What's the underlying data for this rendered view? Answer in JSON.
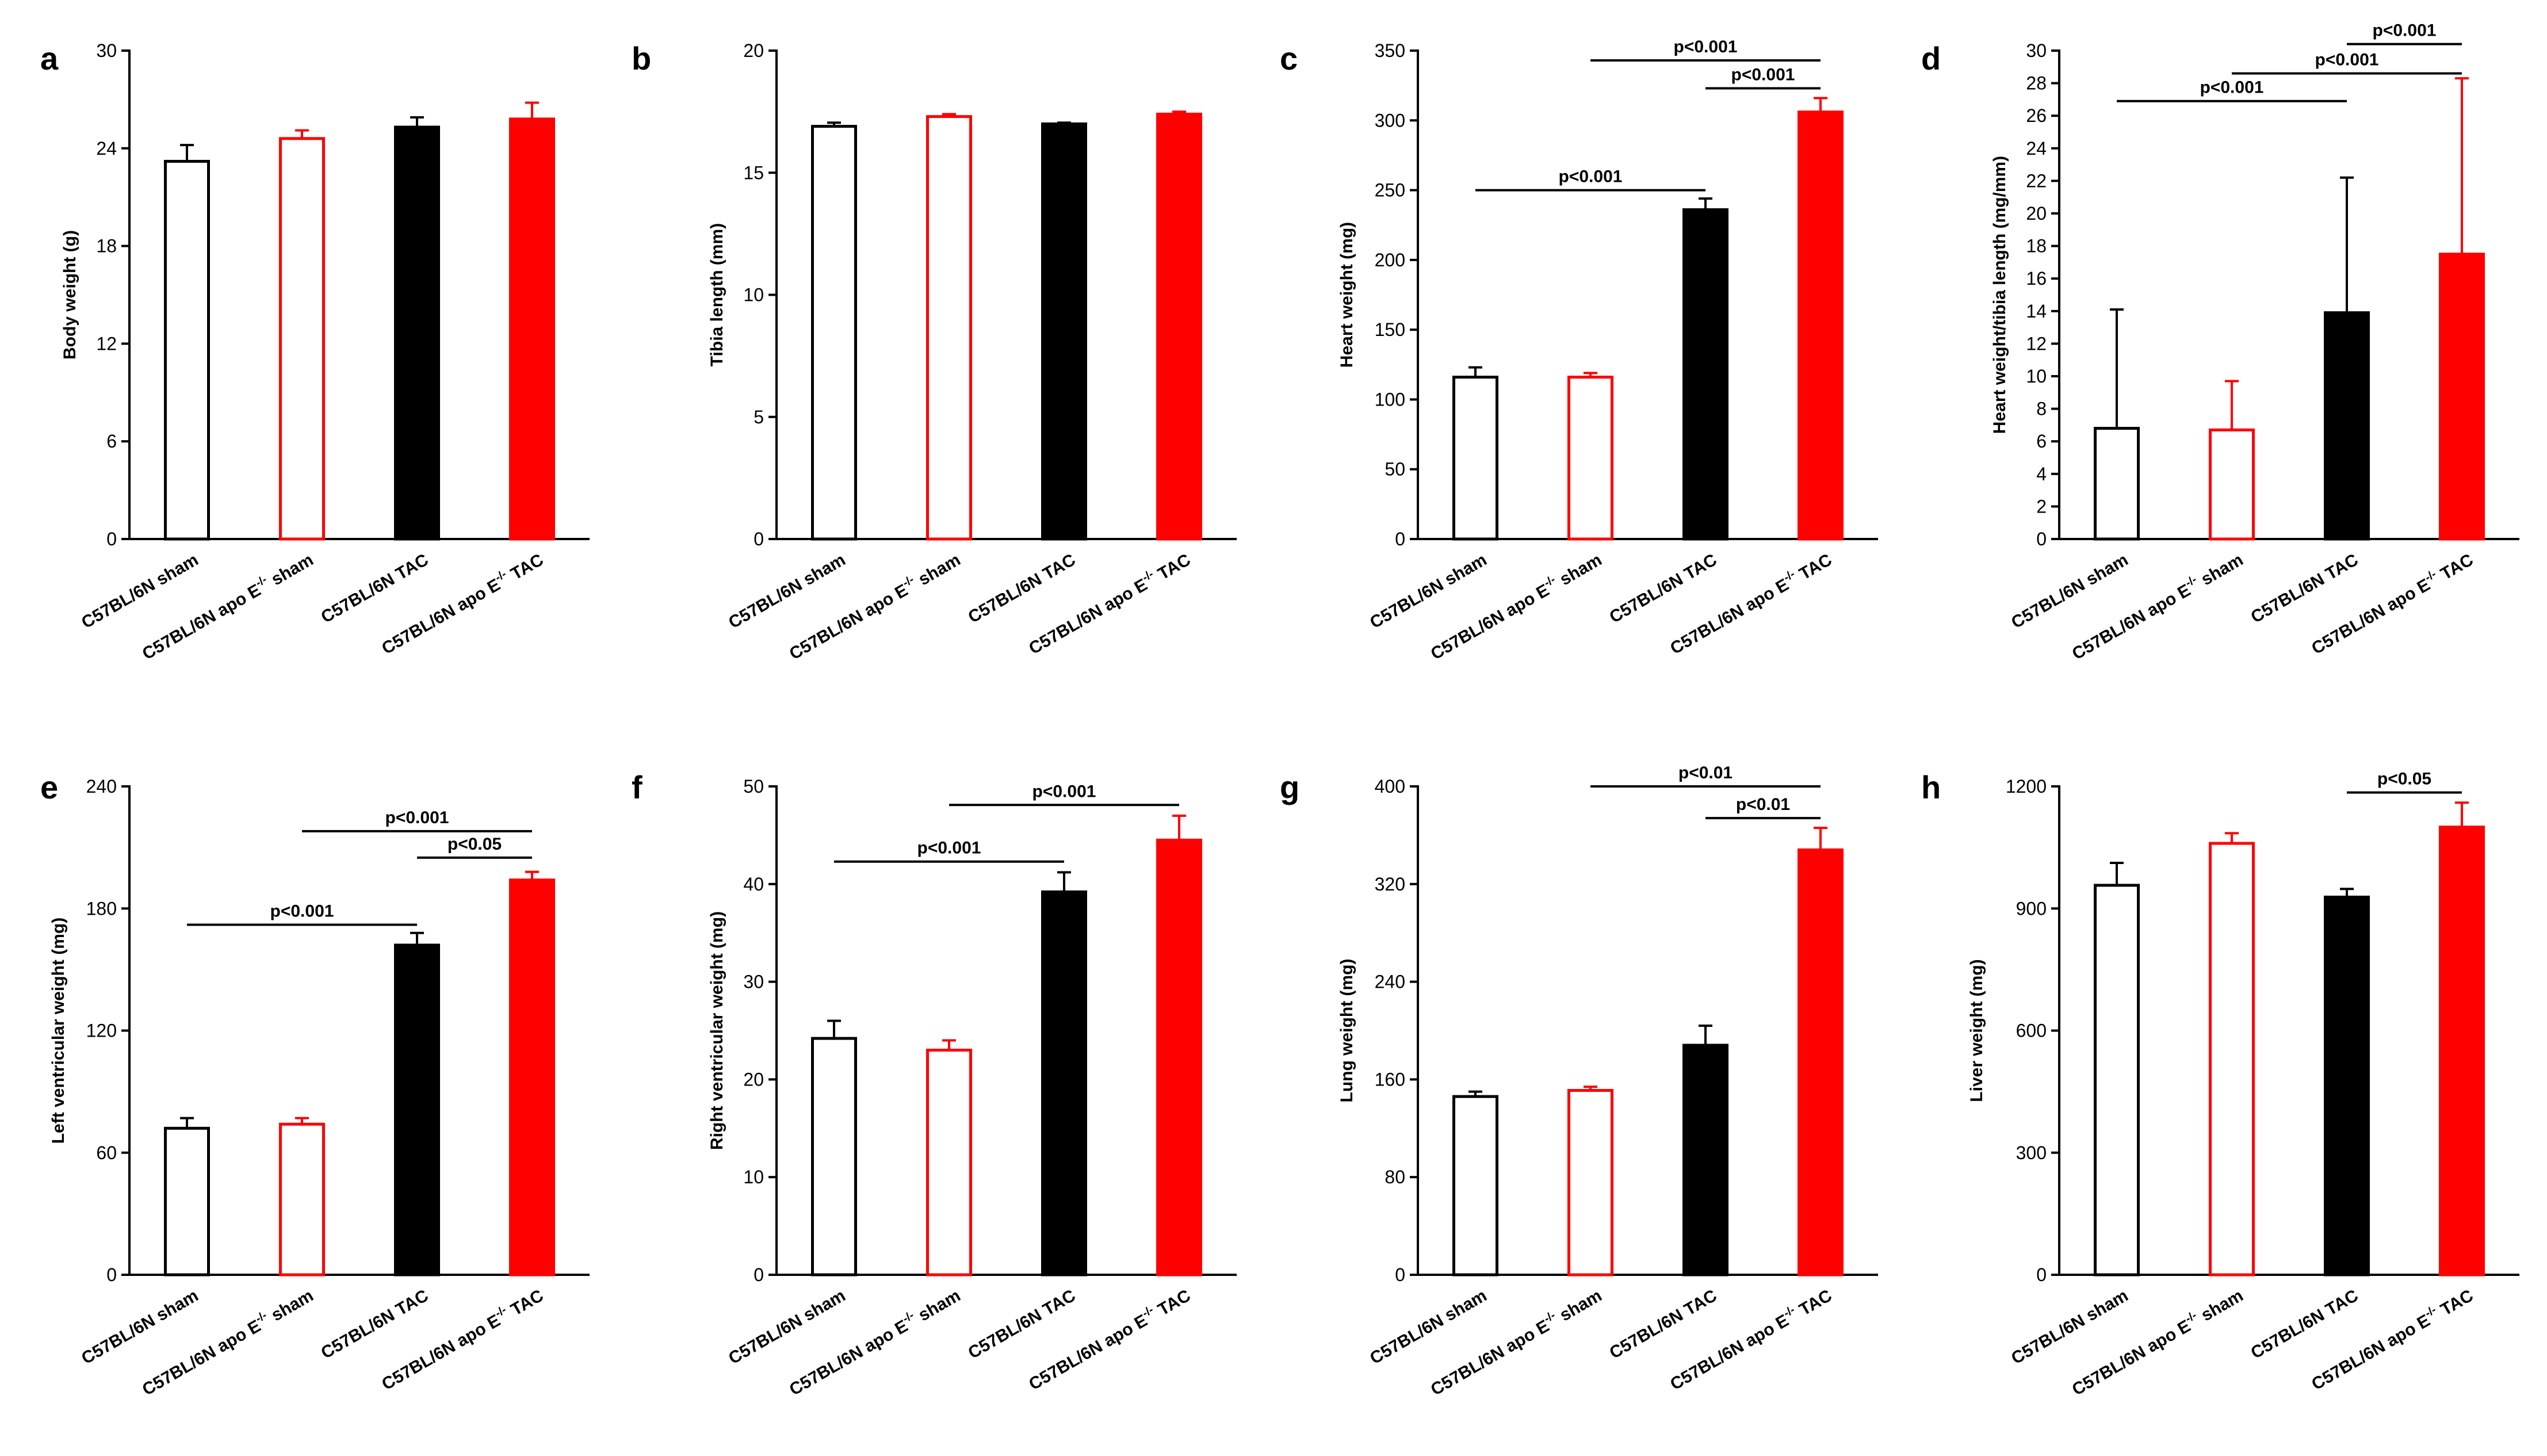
{
  "figure": {
    "colors": {
      "control": "#000000",
      "apoE": "#ff0000",
      "background": "#ffffff"
    },
    "categories_display": [
      {
        "main": "C57BL/6N sham",
        "sup": "",
        "rest": ""
      },
      {
        "main": "C57BL/6N apo E",
        "sup": "-/-",
        "rest": " sham"
      },
      {
        "main": "C57BL/6N TAC",
        "sup": "",
        "rest": ""
      },
      {
        "main": "C57BL/6N apo E",
        "sup": "-/-",
        "rest": " TAC"
      }
    ]
  },
  "chart_data": [
    {
      "panel": "a",
      "type": "bar",
      "ylabel": "Body weight (g)",
      "ylim": [
        0,
        30
      ],
      "yticks": [
        0,
        6,
        12,
        18,
        24,
        30
      ],
      "categories": [
        "C57BL/6N sham",
        "C57BL/6N apo E-/- sham",
        "C57BL/6N TAC",
        "C57BL/6N apo E-/- TAC"
      ],
      "values": [
        23.2,
        24.6,
        25.3,
        25.8
      ],
      "errors": [
        1.0,
        0.5,
        0.6,
        1.0
      ],
      "fill": [
        "none",
        "none",
        "solid",
        "solid"
      ],
      "significance": []
    },
    {
      "panel": "b",
      "type": "bar",
      "ylabel": "Tibia length (mm)",
      "ylim": [
        0,
        20
      ],
      "yticks": [
        0,
        5,
        10,
        15,
        20
      ],
      "categories": [
        "C57BL/6N sham",
        "C57BL/6N apo E-/- sham",
        "C57BL/6N TAC",
        "C57BL/6N apo E-/- TAC"
      ],
      "values": [
        16.9,
        17.3,
        17.0,
        17.4
      ],
      "errors": [
        0.15,
        0.1,
        0.05,
        0.1
      ],
      "fill": [
        "none",
        "none",
        "solid",
        "solid"
      ],
      "significance": []
    },
    {
      "panel": "c",
      "type": "bar",
      "ylabel": "Heart weight (mg)",
      "ylim": [
        0,
        350
      ],
      "yticks": [
        0,
        50,
        100,
        150,
        200,
        250,
        300,
        350
      ],
      "categories": [
        "C57BL/6N sham",
        "C57BL/6N apo E-/- sham",
        "C57BL/6N TAC",
        "C57BL/6N apo E-/- TAC"
      ],
      "values": [
        116,
        116,
        236,
        306
      ],
      "errors": [
        7,
        3,
        8,
        10
      ],
      "fill": [
        "none",
        "none",
        "solid",
        "solid"
      ],
      "significance": [
        {
          "from": 0,
          "to": 2,
          "y": 250,
          "label": "p<0.001"
        },
        {
          "from": 2,
          "to": 3,
          "y": 323,
          "label": "p<0.001"
        },
        {
          "from": 1,
          "to": 3,
          "y": 343,
          "label": "p<0.001"
        }
      ]
    },
    {
      "panel": "d",
      "type": "bar",
      "ylabel": "Heart weight/tibia length (mg/mm)",
      "ylim": [
        0,
        30
      ],
      "yticks": [
        0,
        2,
        4,
        6,
        8,
        10,
        12,
        14,
        16,
        18,
        20,
        22,
        24,
        26,
        28,
        30
      ],
      "categories": [
        "C57BL/6N sham",
        "C57BL/6N apo E-/- sham",
        "C57BL/6N TAC",
        "C57BL/6N apo E-/- TAC"
      ],
      "values": [
        6.8,
        6.7,
        13.9,
        17.5
      ],
      "errors": [
        7.3,
        3.0,
        8.3,
        10.8
      ],
      "fill": [
        "none",
        "none",
        "solid",
        "solid"
      ],
      "significance": [
        {
          "from": 0,
          "to": 2,
          "y": 26.9,
          "label": "p<0.001"
        },
        {
          "from": 1,
          "to": 3,
          "y": 28.6,
          "label": "p<0.001"
        },
        {
          "from": 2,
          "to": 3,
          "y": 30.4,
          "label": "p<0.001"
        }
      ]
    },
    {
      "panel": "e",
      "type": "bar",
      "ylabel": "Left ventricular weight (mg)",
      "ylim": [
        0,
        240
      ],
      "yticks": [
        0,
        60,
        120,
        180,
        240
      ],
      "categories": [
        "C57BL/6N sham",
        "C57BL/6N apo E-/- sham",
        "C57BL/6N TAC",
        "C57BL/6N apo E-/- TAC"
      ],
      "values": [
        72,
        74,
        162,
        194
      ],
      "errors": [
        5,
        3,
        6,
        4
      ],
      "fill": [
        "none",
        "none",
        "solid",
        "solid"
      ],
      "significance": [
        {
          "from": 0,
          "to": 2,
          "y": 172,
          "label": "p<0.001"
        },
        {
          "from": 2,
          "to": 3,
          "y": 205,
          "label": "p<0.05"
        },
        {
          "from": 1,
          "to": 3,
          "y": 218,
          "label": "p<0.001"
        }
      ]
    },
    {
      "panel": "f",
      "type": "bar",
      "ylabel": "Right ventricular weight (mg)",
      "ylim": [
        0,
        50
      ],
      "yticks": [
        0,
        10,
        20,
        30,
        40,
        50
      ],
      "categories": [
        "C57BL/6N sham",
        "C57BL/6N apo E-/- sham",
        "C57BL/6N TAC",
        "C57BL/6N apo E-/- TAC"
      ],
      "values": [
        24.2,
        23.0,
        39.2,
        44.5
      ],
      "errors": [
        1.8,
        1.0,
        2.0,
        2.5
      ],
      "fill": [
        "none",
        "none",
        "solid",
        "solid"
      ],
      "significance": [
        {
          "from": 0,
          "to": 2,
          "y": 42.3,
          "label": "p<0.001"
        },
        {
          "from": 1,
          "to": 3,
          "y": 48.1,
          "label": "p<0.001"
        }
      ]
    },
    {
      "panel": "g",
      "type": "bar",
      "ylabel": "Lung weight (mg)",
      "ylim": [
        0,
        400
      ],
      "yticks": [
        0,
        80,
        160,
        240,
        320,
        400
      ],
      "categories": [
        "C57BL/6N sham",
        "C57BL/6N apo E-/- sham",
        "C57BL/6N TAC",
        "C57BL/6N apo E-/- TAC"
      ],
      "values": [
        146,
        151,
        188,
        348
      ],
      "errors": [
        4,
        3,
        16,
        18
      ],
      "fill": [
        "none",
        "none",
        "solid",
        "solid"
      ],
      "significance": [
        {
          "from": 2,
          "to": 3,
          "y": 374,
          "label": "p<0.01"
        },
        {
          "from": 1,
          "to": 3,
          "y": 400,
          "label": "p<0.01"
        }
      ]
    },
    {
      "panel": "h",
      "type": "bar",
      "ylabel": "Liver weight (mg)",
      "ylim": [
        0,
        1200
      ],
      "yticks": [
        0,
        300,
        600,
        900,
        1200
      ],
      "categories": [
        "C57BL/6N sham",
        "C57BL/6N apo E-/- sham",
        "C57BL/6N TAC",
        "C57BL/6N apo E-/- TAC"
      ],
      "values": [
        957,
        1060,
        928,
        1100
      ],
      "errors": [
        55,
        25,
        20,
        60
      ],
      "fill": [
        "none",
        "none",
        "solid",
        "solid"
      ],
      "significance": [
        {
          "from": 2,
          "to": 3,
          "y": 1185,
          "label": "p<0.05"
        }
      ]
    }
  ]
}
